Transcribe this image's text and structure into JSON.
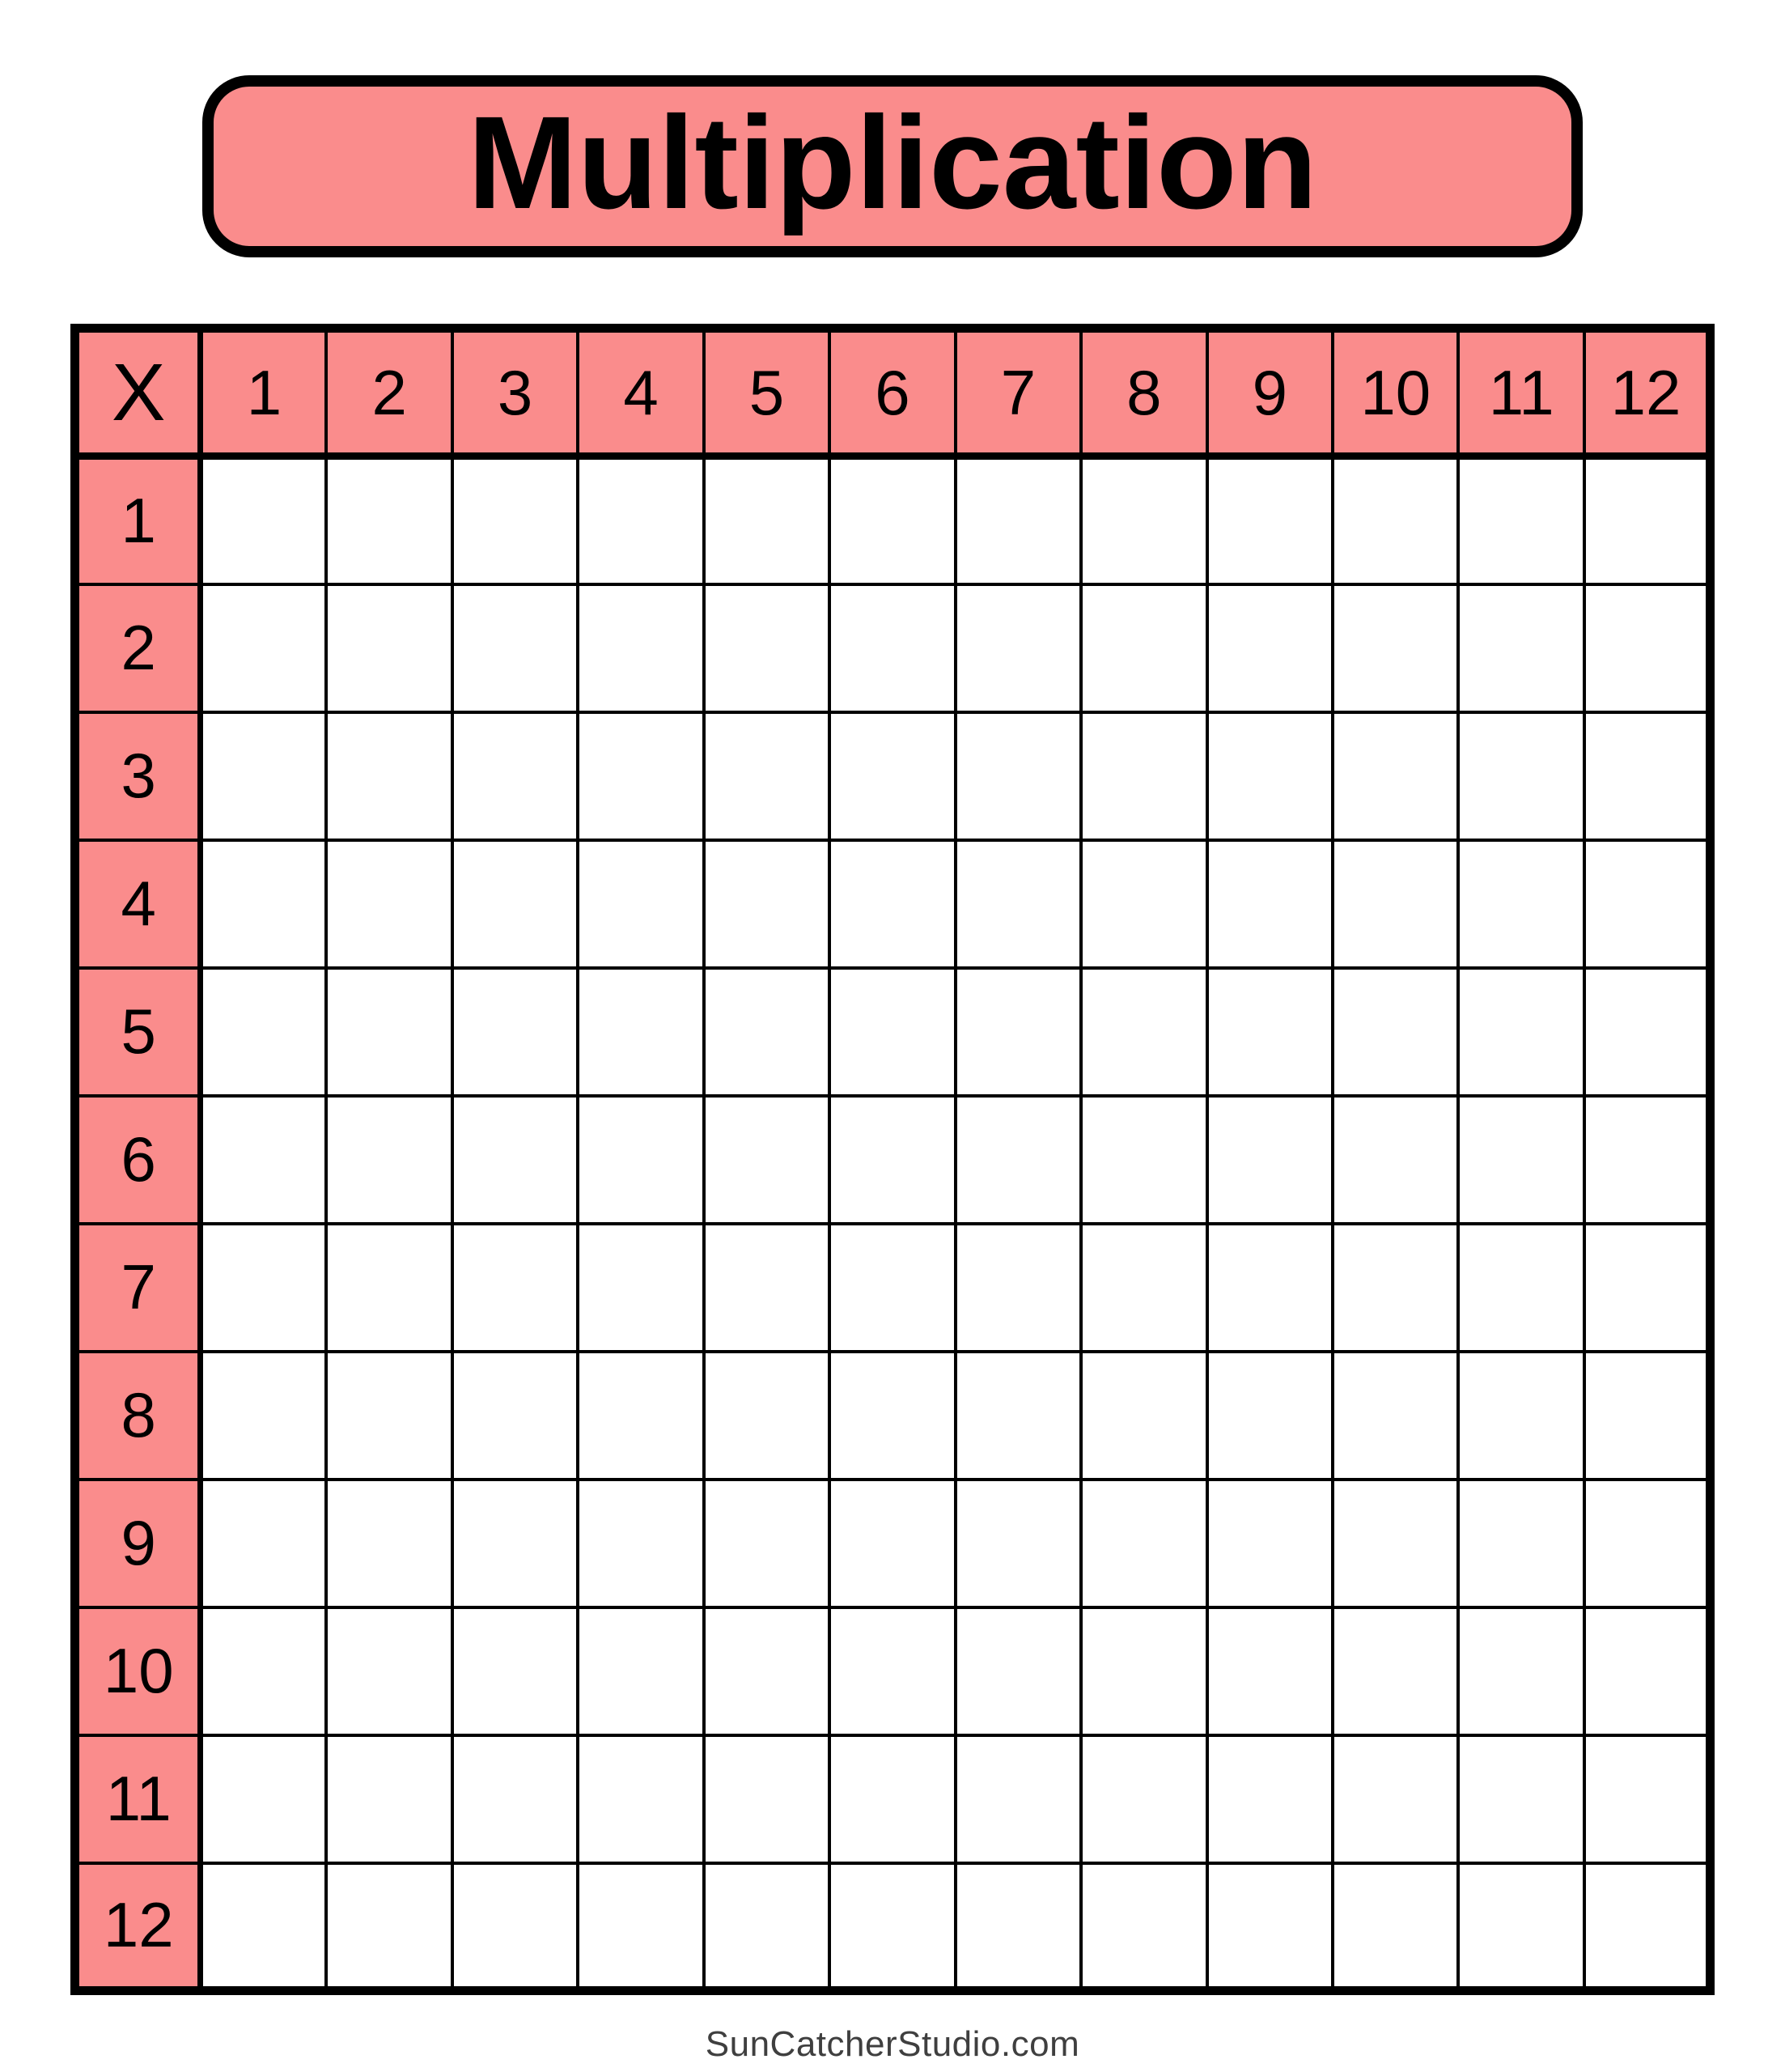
{
  "title": "Multiplication",
  "table": {
    "corner_label": "X",
    "column_headers": [
      "1",
      "2",
      "3",
      "4",
      "5",
      "6",
      "7",
      "8",
      "9",
      "10",
      "11",
      "12"
    ],
    "row_headers": [
      "1",
      "2",
      "3",
      "4",
      "5",
      "6",
      "7",
      "8",
      "9",
      "10",
      "11",
      "12"
    ],
    "cells": [
      [
        "",
        "",
        "",
        "",
        "",
        "",
        "",
        "",
        "",
        "",
        "",
        ""
      ],
      [
        "",
        "",
        "",
        "",
        "",
        "",
        "",
        "",
        "",
        "",
        "",
        ""
      ],
      [
        "",
        "",
        "",
        "",
        "",
        "",
        "",
        "",
        "",
        "",
        "",
        ""
      ],
      [
        "",
        "",
        "",
        "",
        "",
        "",
        "",
        "",
        "",
        "",
        "",
        ""
      ],
      [
        "",
        "",
        "",
        "",
        "",
        "",
        "",
        "",
        "",
        "",
        "",
        ""
      ],
      [
        "",
        "",
        "",
        "",
        "",
        "",
        "",
        "",
        "",
        "",
        "",
        ""
      ],
      [
        "",
        "",
        "",
        "",
        "",
        "",
        "",
        "",
        "",
        "",
        "",
        ""
      ],
      [
        "",
        "",
        "",
        "",
        "",
        "",
        "",
        "",
        "",
        "",
        "",
        ""
      ],
      [
        "",
        "",
        "",
        "",
        "",
        "",
        "",
        "",
        "",
        "",
        "",
        ""
      ],
      [
        "",
        "",
        "",
        "",
        "",
        "",
        "",
        "",
        "",
        "",
        "",
        ""
      ],
      [
        "",
        "",
        "",
        "",
        "",
        "",
        "",
        "",
        "",
        "",
        "",
        ""
      ],
      [
        "",
        "",
        "",
        "",
        "",
        "",
        "",
        "",
        "",
        "",
        "",
        ""
      ]
    ]
  },
  "footer": {
    "credit": "SunCatcherStudio.com"
  },
  "colors": {
    "header_fill": "#FA8C8C",
    "title_fill": "#FA8C8C",
    "grid_line": "#000000",
    "footer_text": "#3F3F3F",
    "page_bg": "#FFFFFF"
  }
}
